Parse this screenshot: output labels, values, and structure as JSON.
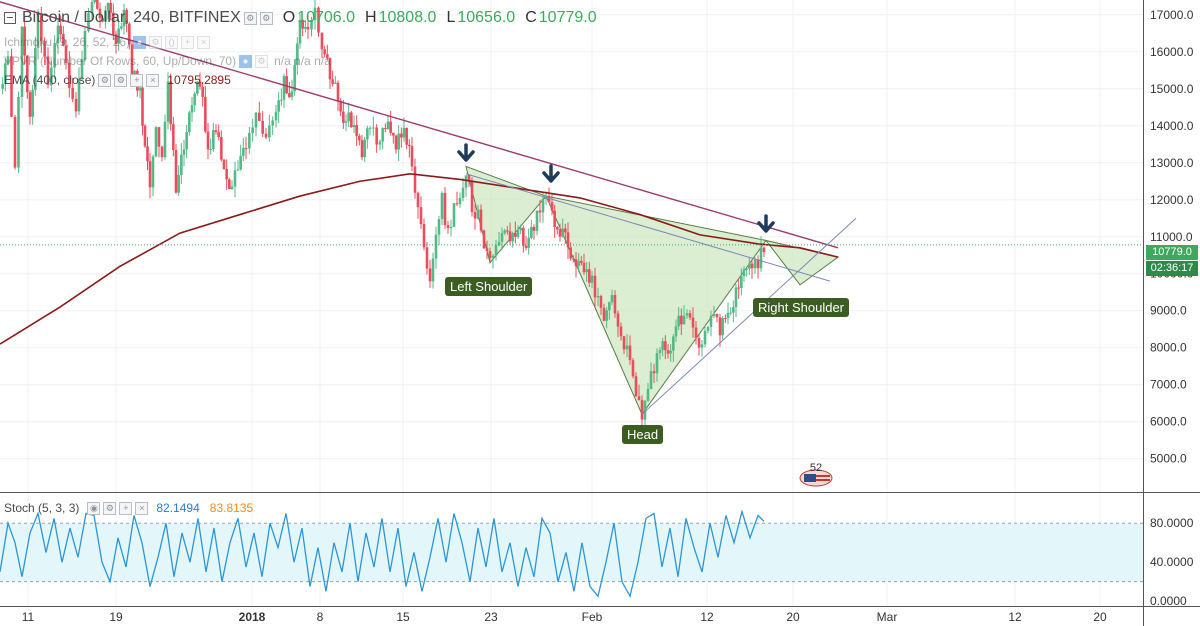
{
  "header": {
    "symbol": "Bitcoin / Dollar, 240, BITFINEX",
    "o_label": "O",
    "o_value": "10706.0",
    "h_label": "H",
    "h_value": "10808.0",
    "l_label": "L",
    "l_value": "10656.0",
    "c_label": "C",
    "c_value": "10779.0"
  },
  "indicators": {
    "ichimoku": "Ichimoku (9, 26, 52, 26)",
    "vpvr": "VPVR (Number Of Rows, 60, Up/Down, 70)",
    "vpvr_vals": "n/a  n/a  n/a",
    "ema": "EMA (400, close)",
    "ema_value": "10795.2895"
  },
  "stoch": {
    "label": "Stoch (5, 3, 3)",
    "k_value": "82.1494",
    "d_value": "83.8135"
  },
  "price_tag": {
    "price": "10779.0",
    "countdown": "02:36:17"
  },
  "patterns": {
    "left_shoulder": "Left Shoulder",
    "head": "Head",
    "right_shoulder": "Right Shoulder"
  },
  "watermark": "52",
  "colors": {
    "up": "#53b987",
    "down": "#eb4d5c",
    "ema": "#8b1a1a",
    "trendline": "#9b3b6e",
    "pattern_fill": "#cfe8c2",
    "stoch": "#2b96d4",
    "stoch_band": "#e3f7fb",
    "label_bg": "#3b5d22",
    "arrow": "#1f3b5c",
    "price_tag": "#3ea85e"
  },
  "chart_data": {
    "type": "candlestick",
    "title": "Bitcoin / Dollar, 240, BITFINEX",
    "y_ticks": [
      5000,
      6000,
      7000,
      8000,
      9000,
      10000,
      11000,
      12000,
      13000,
      14000,
      15000,
      16000,
      17000
    ],
    "y_tick_labels": [
      "5000.0",
      "6000.0",
      "7000.0",
      "8000.0",
      "9000.0",
      "10000.0",
      "11000.0",
      "12000.0",
      "13000.0",
      "14000.0",
      "15000.0",
      "16000.0",
      "17000.0"
    ],
    "ylim": [
      4100,
      17400
    ],
    "x_tick_labels": [
      "11",
      "19",
      "2018",
      "8",
      "15",
      "23",
      "Feb",
      "12",
      "20",
      "Mar",
      "12",
      "20"
    ],
    "x_tick_bold": [
      false,
      false,
      true,
      false,
      false,
      false,
      false,
      false,
      false,
      false,
      false,
      false
    ],
    "price_path": [
      {
        "x": 0,
        "p": 15000
      },
      {
        "x": 8,
        "p": 15900
      },
      {
        "x": 15,
        "p": 12900
      },
      {
        "x": 22,
        "p": 16600
      },
      {
        "x": 30,
        "p": 14000
      },
      {
        "x": 38,
        "p": 16800
      },
      {
        "x": 48,
        "p": 15200
      },
      {
        "x": 58,
        "p": 16900
      },
      {
        "x": 66,
        "p": 15600
      },
      {
        "x": 76,
        "p": 14600
      },
      {
        "x": 85,
        "p": 16400
      },
      {
        "x": 92,
        "p": 17500
      },
      {
        "x": 100,
        "p": 16900
      },
      {
        "x": 108,
        "p": 17200
      },
      {
        "x": 116,
        "p": 16100
      },
      {
        "x": 124,
        "p": 17100
      },
      {
        "x": 132,
        "p": 15400
      },
      {
        "x": 140,
        "p": 14900
      },
      {
        "x": 145,
        "p": 13300
      },
      {
        "x": 150,
        "p": 12300
      },
      {
        "x": 156,
        "p": 14100
      },
      {
        "x": 162,
        "p": 13200
      },
      {
        "x": 168,
        "p": 15000
      },
      {
        "x": 176,
        "p": 12200
      },
      {
        "x": 184,
        "p": 13600
      },
      {
        "x": 192,
        "p": 14500
      },
      {
        "x": 200,
        "p": 15300
      },
      {
        "x": 208,
        "p": 13200
      },
      {
        "x": 216,
        "p": 14000
      },
      {
        "x": 224,
        "p": 12900
      },
      {
        "x": 232,
        "p": 12200
      },
      {
        "x": 238,
        "p": 13000
      },
      {
        "x": 246,
        "p": 13600
      },
      {
        "x": 256,
        "p": 14300
      },
      {
        "x": 266,
        "p": 13600
      },
      {
        "x": 276,
        "p": 14600
      },
      {
        "x": 284,
        "p": 15100
      },
      {
        "x": 292,
        "p": 14700
      },
      {
        "x": 300,
        "p": 16800
      },
      {
        "x": 308,
        "p": 16600
      },
      {
        "x": 315,
        "p": 17000
      },
      {
        "x": 322,
        "p": 16200
      },
      {
        "x": 330,
        "p": 15500
      },
      {
        "x": 338,
        "p": 14700
      },
      {
        "x": 346,
        "p": 14100
      },
      {
        "x": 354,
        "p": 14200
      },
      {
        "x": 362,
        "p": 13200
      },
      {
        "x": 370,
        "p": 14000
      },
      {
        "x": 380,
        "p": 13600
      },
      {
        "x": 388,
        "p": 14100
      },
      {
        "x": 396,
        "p": 13500
      },
      {
        "x": 404,
        "p": 14000
      },
      {
        "x": 412,
        "p": 12900
      },
      {
        "x": 418,
        "p": 11600
      },
      {
        "x": 424,
        "p": 10700
      },
      {
        "x": 430,
        "p": 9900
      },
      {
        "x": 436,
        "p": 11200
      },
      {
        "x": 442,
        "p": 12000
      },
      {
        "x": 448,
        "p": 11100
      },
      {
        "x": 454,
        "p": 11800
      },
      {
        "x": 460,
        "p": 12100
      },
      {
        "x": 466,
        "p": 12900
      },
      {
        "x": 472,
        "p": 11900
      },
      {
        "x": 478,
        "p": 11500
      },
      {
        "x": 484,
        "p": 10900
      },
      {
        "x": 490,
        "p": 10300
      },
      {
        "x": 496,
        "p": 10700
      },
      {
        "x": 502,
        "p": 11200
      },
      {
        "x": 510,
        "p": 11000
      },
      {
        "x": 518,
        "p": 11300
      },
      {
        "x": 526,
        "p": 10700
      },
      {
        "x": 534,
        "p": 11400
      },
      {
        "x": 540,
        "p": 11800
      },
      {
        "x": 546,
        "p": 12100
      },
      {
        "x": 552,
        "p": 11500
      },
      {
        "x": 560,
        "p": 11100
      },
      {
        "x": 568,
        "p": 10800
      },
      {
        "x": 576,
        "p": 10300
      },
      {
        "x": 584,
        "p": 10200
      },
      {
        "x": 592,
        "p": 9900
      },
      {
        "x": 598,
        "p": 9300
      },
      {
        "x": 604,
        "p": 8900
      },
      {
        "x": 612,
        "p": 9400
      },
      {
        "x": 618,
        "p": 8600
      },
      {
        "x": 624,
        "p": 8200
      },
      {
        "x": 630,
        "p": 7500
      },
      {
        "x": 636,
        "p": 6900
      },
      {
        "x": 642,
        "p": 6200
      },
      {
        "x": 648,
        "p": 6900
      },
      {
        "x": 654,
        "p": 7400
      },
      {
        "x": 660,
        "p": 8100
      },
      {
        "x": 668,
        "p": 7700
      },
      {
        "x": 676,
        "p": 8500
      },
      {
        "x": 684,
        "p": 8900
      },
      {
        "x": 690,
        "p": 8600
      },
      {
        "x": 696,
        "p": 8300
      },
      {
        "x": 702,
        "p": 8100
      },
      {
        "x": 708,
        "p": 8800
      },
      {
        "x": 714,
        "p": 9000
      },
      {
        "x": 720,
        "p": 8500
      },
      {
        "x": 728,
        "p": 8800
      },
      {
        "x": 736,
        "p": 9600
      },
      {
        "x": 744,
        "p": 10100
      },
      {
        "x": 752,
        "p": 10300
      },
      {
        "x": 758,
        "p": 10200
      },
      {
        "x": 764,
        "p": 10800
      }
    ],
    "ema_path": [
      {
        "x": 0,
        "p": 8100
      },
      {
        "x": 60,
        "p": 9100
      },
      {
        "x": 120,
        "p": 10200
      },
      {
        "x": 180,
        "p": 11100
      },
      {
        "x": 240,
        "p": 11600
      },
      {
        "x": 300,
        "p": 12100
      },
      {
        "x": 360,
        "p": 12500
      },
      {
        "x": 410,
        "p": 12700
      },
      {
        "x": 460,
        "p": 12550
      },
      {
        "x": 520,
        "p": 12300
      },
      {
        "x": 580,
        "p": 12050
      },
      {
        "x": 640,
        "p": 11600
      },
      {
        "x": 700,
        "p": 11050
      },
      {
        "x": 760,
        "p": 10800
      },
      {
        "x": 800,
        "p": 10700
      },
      {
        "x": 838,
        "p": 10450
      }
    ],
    "stoch_path": [
      {
        "x": 0,
        "v": 30
      },
      {
        "x": 8,
        "v": 80
      },
      {
        "x": 15,
        "v": 60
      },
      {
        "x": 22,
        "v": 25
      },
      {
        "x": 30,
        "v": 70
      },
      {
        "x": 38,
        "v": 90
      },
      {
        "x": 46,
        "v": 50
      },
      {
        "x": 54,
        "v": 85
      },
      {
        "x": 62,
        "v": 40
      },
      {
        "x": 70,
        "v": 75
      },
      {
        "x": 78,
        "v": 45
      },
      {
        "x": 86,
        "v": 90
      },
      {
        "x": 94,
        "v": 88
      },
      {
        "x": 102,
        "v": 40
      },
      {
        "x": 110,
        "v": 20
      },
      {
        "x": 118,
        "v": 65
      },
      {
        "x": 126,
        "v": 35
      },
      {
        "x": 134,
        "v": 88
      },
      {
        "x": 142,
        "v": 60
      },
      {
        "x": 150,
        "v": 15
      },
      {
        "x": 158,
        "v": 45
      },
      {
        "x": 166,
        "v": 80
      },
      {
        "x": 174,
        "v": 25
      },
      {
        "x": 182,
        "v": 70
      },
      {
        "x": 190,
        "v": 40
      },
      {
        "x": 198,
        "v": 85
      },
      {
        "x": 206,
        "v": 30
      },
      {
        "x": 214,
        "v": 75
      },
      {
        "x": 222,
        "v": 20
      },
      {
        "x": 230,
        "v": 60
      },
      {
        "x": 238,
        "v": 85
      },
      {
        "x": 246,
        "v": 35
      },
      {
        "x": 254,
        "v": 70
      },
      {
        "x": 262,
        "v": 25
      },
      {
        "x": 270,
        "v": 80
      },
      {
        "x": 278,
        "v": 55
      },
      {
        "x": 286,
        "v": 90
      },
      {
        "x": 294,
        "v": 40
      },
      {
        "x": 302,
        "v": 75
      },
      {
        "x": 310,
        "v": 15
      },
      {
        "x": 318,
        "v": 55
      },
      {
        "x": 326,
        "v": 10
      },
      {
        "x": 334,
        "v": 60
      },
      {
        "x": 342,
        "v": 30
      },
      {
        "x": 350,
        "v": 80
      },
      {
        "x": 358,
        "v": 20
      },
      {
        "x": 366,
        "v": 70
      },
      {
        "x": 374,
        "v": 35
      },
      {
        "x": 382,
        "v": 85
      },
      {
        "x": 390,
        "v": 30
      },
      {
        "x": 398,
        "v": 75
      },
      {
        "x": 406,
        "v": 15
      },
      {
        "x": 414,
        "v": 50
      },
      {
        "x": 422,
        "v": 10
      },
      {
        "x": 430,
        "v": 45
      },
      {
        "x": 438,
        "v": 85
      },
      {
        "x": 446,
        "v": 40
      },
      {
        "x": 454,
        "v": 90
      },
      {
        "x": 462,
        "v": 60
      },
      {
        "x": 470,
        "v": 20
      },
      {
        "x": 478,
        "v": 75
      },
      {
        "x": 486,
        "v": 35
      },
      {
        "x": 494,
        "v": 85
      },
      {
        "x": 502,
        "v": 30
      },
      {
        "x": 510,
        "v": 60
      },
      {
        "x": 518,
        "v": 15
      },
      {
        "x": 526,
        "v": 55
      },
      {
        "x": 534,
        "v": 25
      },
      {
        "x": 542,
        "v": 85
      },
      {
        "x": 550,
        "v": 70
      },
      {
        "x": 558,
        "v": 20
      },
      {
        "x": 566,
        "v": 50
      },
      {
        "x": 574,
        "v": 10
      },
      {
        "x": 582,
        "v": 60
      },
      {
        "x": 590,
        "v": 15
      },
      {
        "x": 598,
        "v": 5
      },
      {
        "x": 606,
        "v": 40
      },
      {
        "x": 614,
        "v": 80
      },
      {
        "x": 622,
        "v": 20
      },
      {
        "x": 630,
        "v": 5
      },
      {
        "x": 638,
        "v": 40
      },
      {
        "x": 646,
        "v": 85
      },
      {
        "x": 654,
        "v": 90
      },
      {
        "x": 662,
        "v": 35
      },
      {
        "x": 670,
        "v": 75
      },
      {
        "x": 678,
        "v": 25
      },
      {
        "x": 686,
        "v": 85
      },
      {
        "x": 694,
        "v": 55
      },
      {
        "x": 702,
        "v": 30
      },
      {
        "x": 710,
        "v": 80
      },
      {
        "x": 718,
        "v": 45
      },
      {
        "x": 726,
        "v": 88
      },
      {
        "x": 734,
        "v": 60
      },
      {
        "x": 742,
        "v": 92
      },
      {
        "x": 750,
        "v": 65
      },
      {
        "x": 758,
        "v": 88
      },
      {
        "x": 764,
        "v": 82
      }
    ],
    "stoch_ylim": [
      -5,
      110
    ],
    "stoch_ticks": [
      0,
      40,
      80
    ],
    "stoch_tick_labels": [
      "0.0000",
      "40.0000",
      "80.0000"
    ],
    "last_price": 10779.0
  }
}
